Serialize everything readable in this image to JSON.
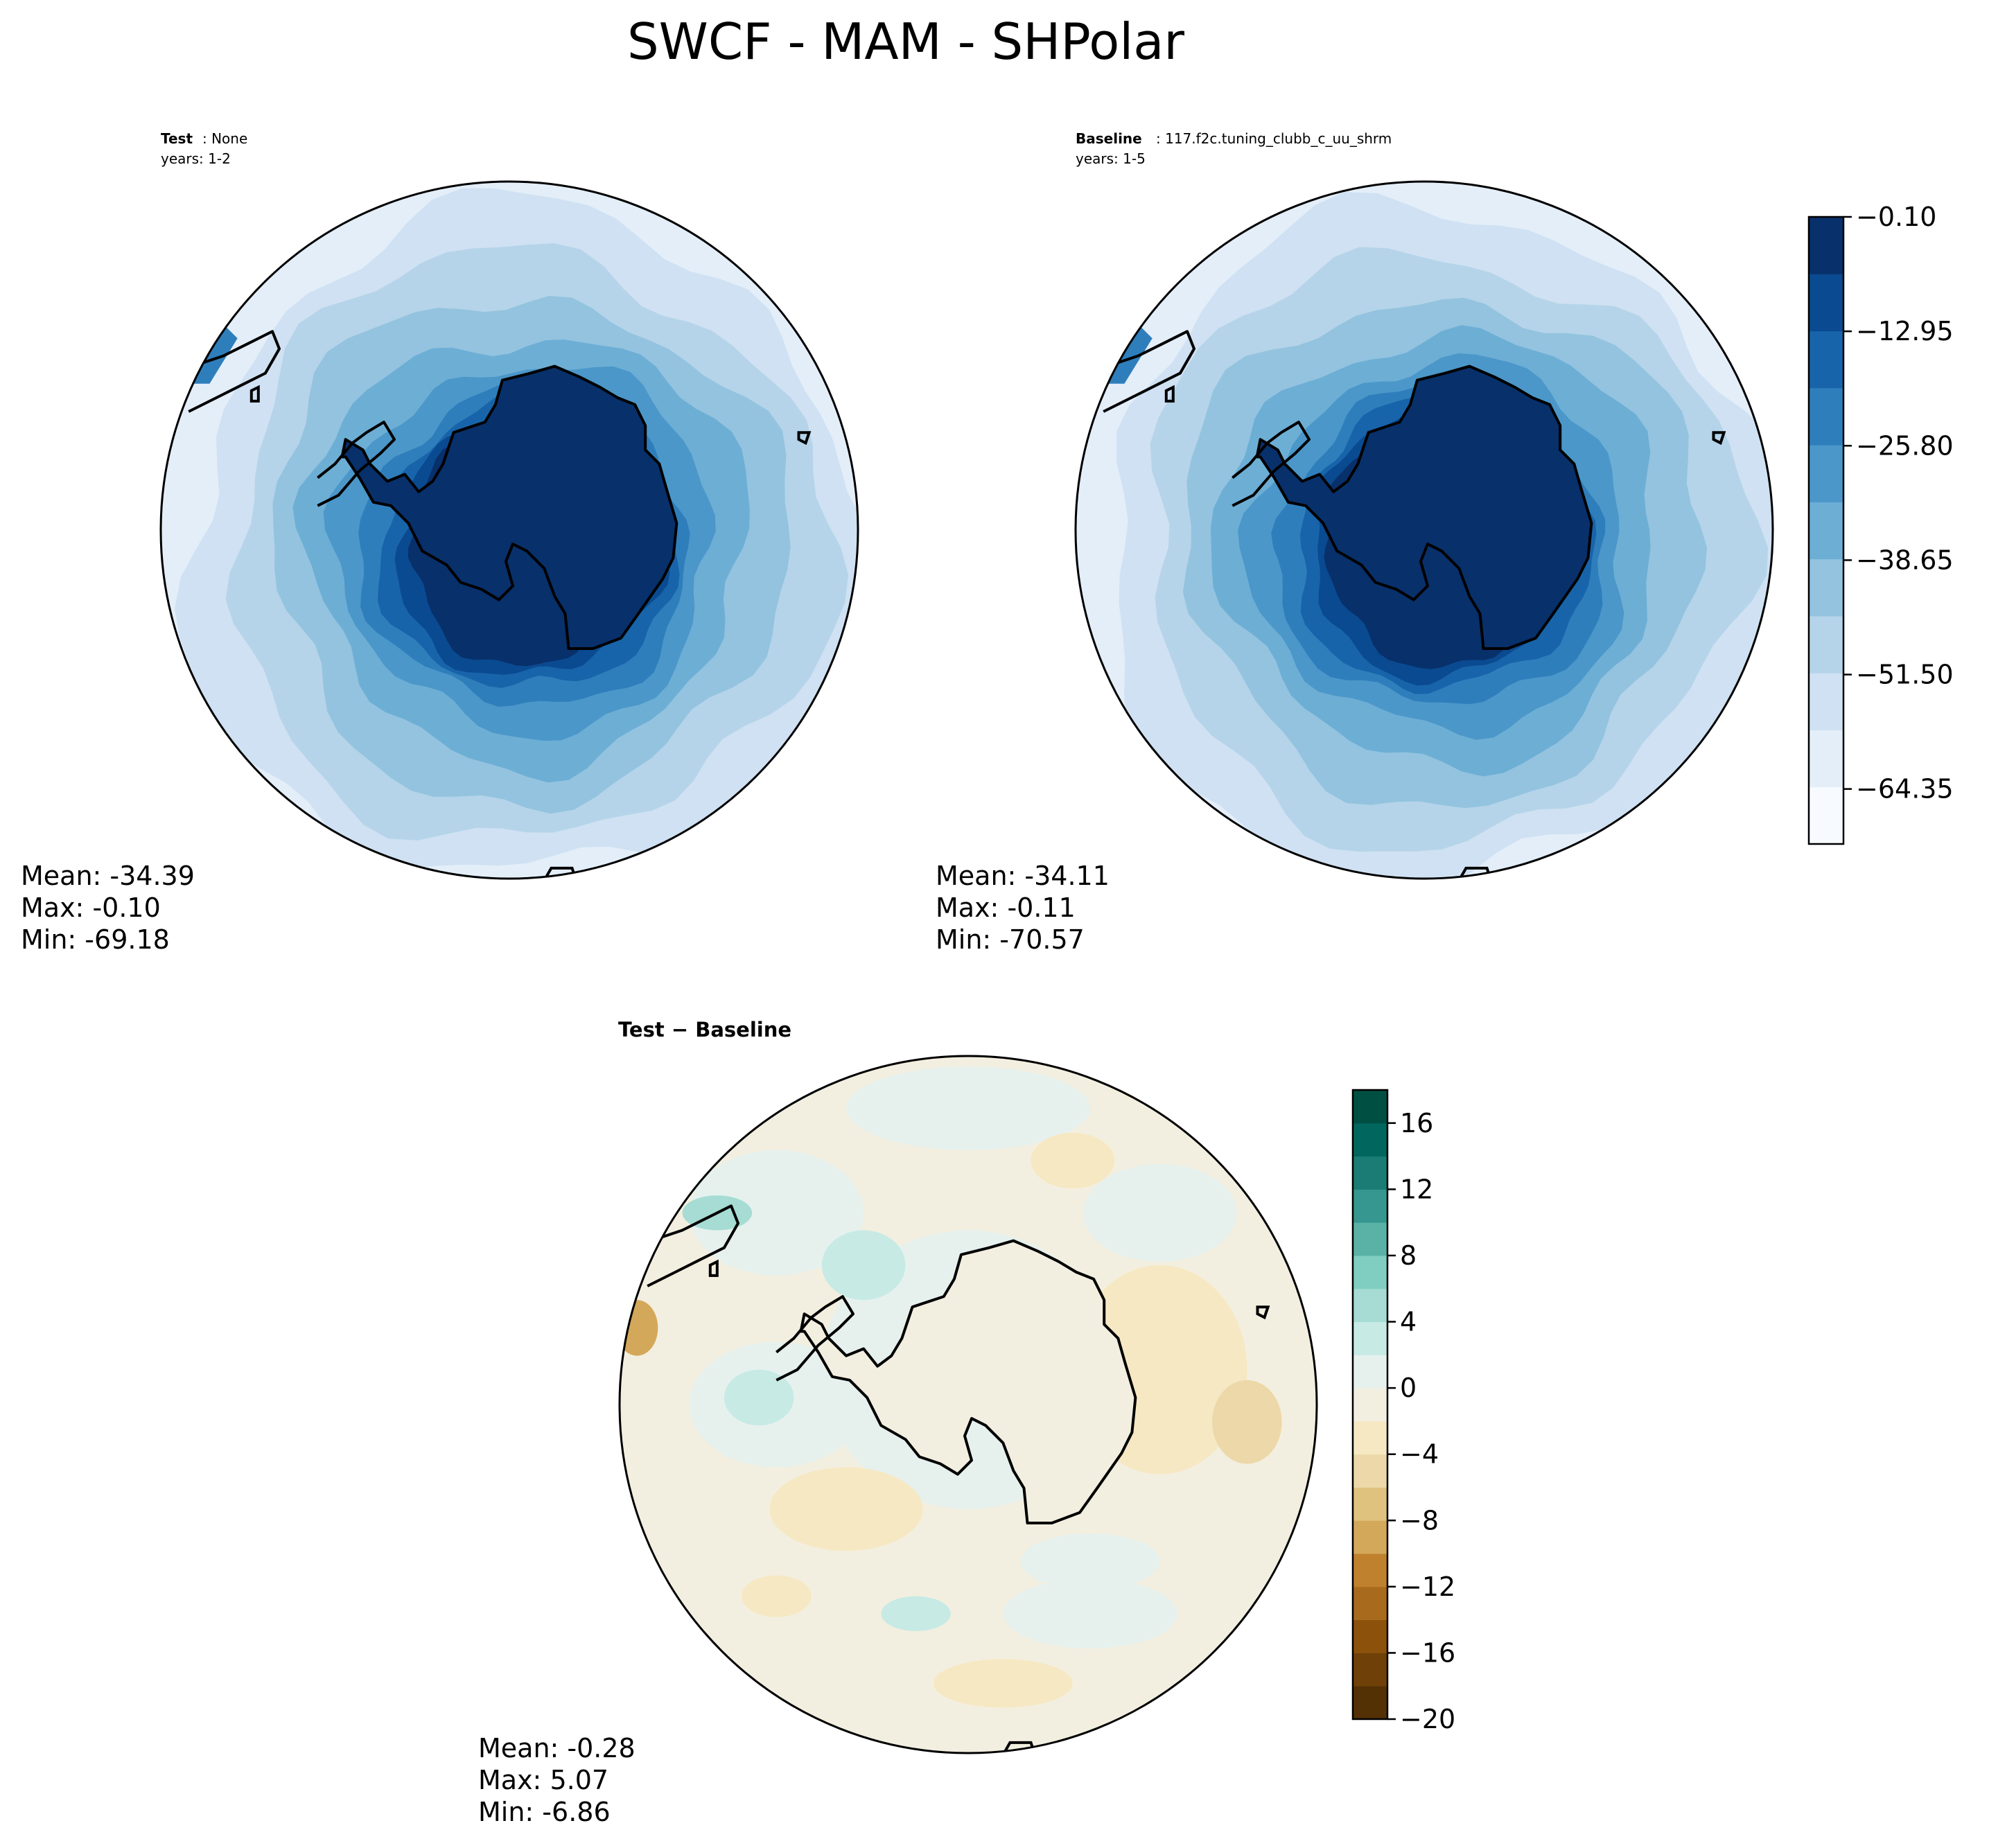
{
  "title": "SWCF - MAM - SHPolar",
  "colors": {
    "blues": [
      "#f7fbff",
      "#e3eef9",
      "#cfe1f2",
      "#b5d4e9",
      "#93c3df",
      "#6daed5",
      "#4b97c9",
      "#2f7ebc",
      "#1864aa",
      "#0a4a90",
      "#08306b"
    ],
    "diverging": [
      "#543005",
      "#6f4109",
      "#8c510a",
      "#a86a1d",
      "#bf812d",
      "#d4a85a",
      "#dfc27d",
      "#ecd8a8",
      "#f6e8c3",
      "#f3efe0",
      "#e6f1ee",
      "#c7eae5",
      "#a6dcd4",
      "#80cdc1",
      "#5ab2a7",
      "#35978f",
      "#1a7c74",
      "#01665e",
      "#004f43",
      "#003c30"
    ],
    "land_test": "#08306b",
    "land_diff": "#f3efe0",
    "coast": "#000000"
  },
  "panels": {
    "test": {
      "label_bold": "Test",
      "label_rest": ": None",
      "years": "years: 1-2",
      "mean": "Mean: -34.39",
      "max": "Max: -0.10",
      "min": "Min: -69.18"
    },
    "baseline": {
      "label_bold": "Baseline",
      "label_rest": ": 117.f2c.tuning_clubb_c_uu_shrm",
      "years": "years: 1-5",
      "mean": "Mean: -34.11",
      "max": "Max: -0.11",
      "min": "Min: -70.57"
    },
    "diff": {
      "label": "Test − Baseline",
      "mean": "Mean: -0.28",
      "max": "Max:  5.07",
      "min": "Min: -6.86"
    }
  },
  "colorbar_main": {
    "tick_labels": [
      "−0.10",
      "−12.95",
      "−25.80",
      "−38.65",
      "−51.50",
      "−64.35"
    ],
    "tick_values": [
      -0.1,
      -12.95,
      -25.8,
      -38.65,
      -51.5,
      -64.35
    ],
    "range": [
      -70.525,
      -0.1
    ]
  },
  "colorbar_diff": {
    "tick_labels": [
      "16",
      "12",
      "8",
      "4",
      "0",
      "−4",
      "−8",
      "−12",
      "−16",
      "−20"
    ],
    "tick_values": [
      16,
      12,
      8,
      4,
      0,
      -4,
      -8,
      -12,
      -16,
      -20
    ],
    "range": [
      -20,
      18
    ]
  },
  "chart_data": [
    {
      "type": "heatmap",
      "title": "Test: None",
      "subtitle": "years: 1-2",
      "projection": "south polar stereographic",
      "levels": [
        -70.525,
        -64.1,
        -57.7,
        -51.3,
        -44.9,
        -38.5,
        -32.1,
        -25.7,
        -19.3,
        -12.9,
        -6.5,
        -0.1
      ],
      "stats": {
        "mean": -34.39,
        "max": -0.1,
        "min": -69.18
      }
    },
    {
      "type": "heatmap",
      "title": "Baseline: 117.f2c.tuning_clubb_c_uu_shrm",
      "subtitle": "years: 1-5",
      "projection": "south polar stereographic",
      "levels": [
        -70.525,
        -64.1,
        -57.7,
        -51.3,
        -44.9,
        -38.5,
        -32.1,
        -25.7,
        -19.3,
        -12.9,
        -6.5,
        -0.1
      ],
      "stats": {
        "mean": -34.11,
        "max": -0.11,
        "min": -70.57
      }
    },
    {
      "type": "heatmap",
      "title": "Test − Baseline",
      "projection": "south polar stereographic",
      "levels": [
        -20,
        -18,
        -16,
        -14,
        -12,
        -10,
        -8,
        -6,
        -4,
        -2,
        0,
        2,
        4,
        6,
        8,
        10,
        12,
        14,
        16,
        18
      ],
      "stats": {
        "mean": -0.28,
        "max": 5.07,
        "min": -6.86
      }
    }
  ]
}
